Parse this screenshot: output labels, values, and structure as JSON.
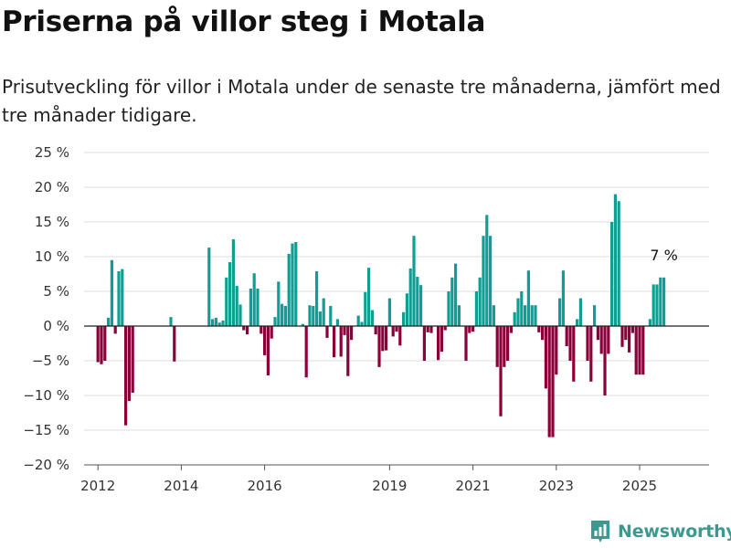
{
  "title": "Priserna på villor steg i Motala",
  "subtitle": "Prisutveckling för villor i Motala under de senaste tre månaderna, jämfört med tre månader tidigare.",
  "brand": {
    "name": "Newsworthy",
    "icon": "bar-chart-logo-icon",
    "color": "#3b9a8f"
  },
  "chart_data": {
    "type": "bar",
    "ylim": [
      -20,
      25
    ],
    "yticks": [
      -20,
      -15,
      -10,
      -5,
      0,
      5,
      10,
      15,
      20,
      25
    ],
    "ytick_labels": [
      "−20 %",
      "−15 %",
      "−10 %",
      "−5 %",
      "0 %",
      "5 %",
      "10 %",
      "15 %",
      "20 %",
      "25 %"
    ],
    "xlim": [
      "2011-09",
      "2026-09"
    ],
    "xticks": [
      "2012-01",
      "2014-01",
      "2016-01",
      "2019-01",
      "2021-01",
      "2023-01",
      "2025-01"
    ],
    "xtick_labels": [
      "2012",
      "2014",
      "2016",
      "2019",
      "2021",
      "2023",
      "2025"
    ],
    "grid": true,
    "colors": {
      "positive": "#0e9e94",
      "negative": "#8b0039",
      "grid": "#dddddd",
      "zero_line": "#222222",
      "axis": "#555555"
    },
    "annotation": {
      "x": "2025-08",
      "value": 7,
      "label": "7 %"
    },
    "series": [
      {
        "x": [
          "2012-01",
          "2012-02",
          "2012-03",
          "2012-04",
          "2012-05",
          "2012-06",
          "2012-07",
          "2012-08",
          "2012-09",
          "2012-10",
          "2012-11",
          "2012-12",
          "2013-01",
          "2013-10",
          "2013-11",
          "2014-09",
          "2014-10",
          "2014-11",
          "2014-12",
          "2015-01",
          "2015-02",
          "2015-03",
          "2015-04",
          "2015-05",
          "2015-06",
          "2015-07",
          "2015-08",
          "2015-09",
          "2015-10",
          "2015-11",
          "2015-12",
          "2016-01",
          "2016-02",
          "2016-03",
          "2016-04",
          "2016-05",
          "2016-06",
          "2016-07",
          "2016-08",
          "2016-09",
          "2016-10",
          "2016-11",
          "2016-12",
          "2017-01",
          "2017-02",
          "2017-03",
          "2017-04",
          "2017-05",
          "2017-06",
          "2017-07",
          "2017-08",
          "2017-09",
          "2017-10",
          "2017-11",
          "2017-12",
          "2018-01",
          "2018-02",
          "2018-03",
          "2018-04",
          "2018-05",
          "2018-06",
          "2018-07",
          "2018-08",
          "2018-09",
          "2018-10",
          "2018-11",
          "2018-12",
          "2019-01",
          "2019-02",
          "2019-03",
          "2019-04",
          "2019-05",
          "2019-06",
          "2019-07",
          "2019-08",
          "2019-09",
          "2019-10",
          "2019-11",
          "2019-12",
          "2020-01",
          "2020-02",
          "2020-03",
          "2020-04",
          "2020-05",
          "2020-06",
          "2020-07",
          "2020-08",
          "2020-09",
          "2020-10",
          "2020-11",
          "2020-12",
          "2021-01",
          "2021-02",
          "2021-03",
          "2021-04",
          "2021-05",
          "2021-06",
          "2021-07",
          "2021-08",
          "2021-09",
          "2021-10",
          "2021-11",
          "2021-12",
          "2022-01",
          "2022-02",
          "2022-03",
          "2022-04",
          "2022-05",
          "2022-06",
          "2022-07",
          "2022-08",
          "2022-09",
          "2022-10",
          "2022-11",
          "2022-12",
          "2023-01",
          "2023-02",
          "2023-03",
          "2023-04",
          "2023-05",
          "2023-06",
          "2023-07",
          "2023-08",
          "2023-09",
          "2023-10",
          "2023-11",
          "2023-12",
          "2024-01",
          "2024-02",
          "2024-03",
          "2024-04",
          "2024-05",
          "2024-06",
          "2024-07",
          "2024-08",
          "2024-09",
          "2024-10",
          "2024-11",
          "2024-12",
          "2025-01",
          "2025-02",
          "2025-03",
          "2025-04",
          "2025-05",
          "2025-06",
          "2025-07",
          "2025-08"
        ],
        "values": [
          -5.2,
          -5.5,
          -5.0,
          1.2,
          9.5,
          -1.1,
          7.9,
          8.2,
          -14.3,
          -10.8,
          -9.6,
          0,
          0,
          1.3,
          -5.1,
          11.3,
          1.0,
          1.2,
          0.5,
          0.8,
          7.0,
          9.2,
          12.5,
          5.8,
          3.1,
          -0.6,
          -1.2,
          5.4,
          7.6,
          5.4,
          -1.1,
          -4.2,
          -7.1,
          -1.8,
          1.3,
          6.4,
          3.2,
          2.9,
          10.4,
          11.9,
          12.1,
          0,
          0.3,
          -7.4,
          3.0,
          2.9,
          7.9,
          2.1,
          4.0,
          -1.7,
          2.9,
          -4.5,
          1.0,
          -4.4,
          -1.3,
          -7.2,
          -2.0,
          0,
          1.5,
          0.6,
          4.9,
          8.4,
          2.3,
          -1.2,
          -5.9,
          -3.6,
          -3.5,
          4.0,
          -1.5,
          -0.8,
          -2.8,
          2.0,
          4.7,
          8.3,
          13.0,
          7.1,
          5.9,
          -5.0,
          -0.9,
          -1.0,
          0,
          -4.9,
          -3.7,
          -0.6,
          5.0,
          7.0,
          9.0,
          3.0,
          0,
          -5.0,
          -1.0,
          -0.8,
          5.0,
          7.0,
          13.0,
          16.0,
          13.0,
          3.0,
          -5.9,
          -13.0,
          -5.9,
          -5.0,
          -1.0,
          2.0,
          4.0,
          5.0,
          3.0,
          8.0,
          3.0,
          3.0,
          -0.9,
          -2.0,
          -9.0,
          -16.0,
          -16.0,
          -7.0,
          4.0,
          8.0,
          -2.9,
          -5.0,
          -8.0,
          1.0,
          4.0,
          0,
          -5.0,
          -8.0,
          3.0,
          -2.0,
          -4.0,
          -10.0,
          -4.0,
          15.0,
          19.0,
          18.0,
          -3.0,
          -2.0,
          -3.8,
          -1.0,
          -7.0,
          -7.0,
          -7.0,
          0,
          1.0,
          6.0,
          6.0,
          7.0,
          7.0
        ]
      }
    ]
  }
}
